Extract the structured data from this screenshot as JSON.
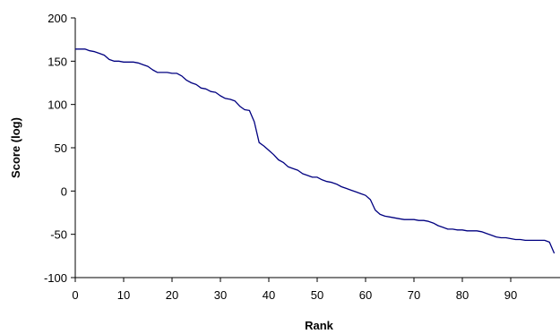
{
  "chart_data": {
    "type": "line",
    "title": "",
    "xlabel": "Rank",
    "ylabel": "Score (log)",
    "xlim": [
      0,
      100
    ],
    "ylim": [
      -100,
      200
    ],
    "x_ticks": [
      0,
      10,
      20,
      30,
      40,
      50,
      60,
      70,
      80,
      90
    ],
    "y_ticks": [
      -100,
      -50,
      0,
      50,
      100,
      150,
      200
    ],
    "x_tick_labels": [
      "0",
      "10",
      "20",
      "30",
      "40",
      "50",
      "60",
      "70",
      "80",
      "90"
    ],
    "y_tick_labels": [
      "-100",
      "-50",
      "0",
      "50",
      "100",
      "150",
      "200"
    ],
    "grid": false,
    "legend": "none",
    "line_color": "#000080",
    "series": [
      {
        "x": [
          0,
          1,
          2,
          3,
          4,
          5,
          6,
          7,
          8,
          9,
          10,
          11,
          12,
          13,
          14,
          15,
          16,
          17,
          18,
          19,
          20,
          21,
          22,
          23,
          24,
          25,
          26,
          27,
          28,
          29,
          30,
          31,
          32,
          33,
          34,
          35,
          36,
          37,
          38,
          39,
          40,
          41,
          42,
          43,
          44,
          45,
          46,
          47,
          48,
          49,
          50,
          51,
          52,
          53,
          54,
          55,
          56,
          57,
          58,
          59,
          60,
          61,
          62,
          63,
          64,
          65,
          66,
          67,
          68,
          69,
          70,
          71,
          72,
          73,
          74,
          75,
          76,
          77,
          78,
          79,
          80,
          81,
          82,
          83,
          84,
          85,
          86,
          87,
          88,
          89,
          90,
          91,
          92,
          93,
          94,
          95,
          96,
          97,
          98,
          99
        ],
        "values": [
          164,
          164,
          164,
          162,
          161,
          159,
          157,
          152,
          150,
          150,
          149,
          149,
          149,
          148,
          146,
          144,
          140,
          137,
          137,
          137,
          136,
          136,
          133,
          128,
          125,
          123,
          119,
          118,
          115,
          114,
          110,
          107,
          106,
          104,
          98,
          94,
          93,
          80,
          56,
          52,
          47,
          42,
          36,
          33,
          28,
          26,
          24,
          20,
          18,
          16,
          16,
          13,
          11,
          10,
          8,
          5,
          3,
          1,
          -1,
          -3,
          -5,
          -10,
          -22,
          -27,
          -29,
          -30,
          -31,
          -32,
          -33,
          -33,
          -33,
          -34,
          -34,
          -35,
          -37,
          -40,
          -42,
          -44,
          -44,
          -45,
          -45,
          -46,
          -46,
          -46,
          -47,
          -49,
          -51,
          -53,
          -54,
          -54,
          -55,
          -56,
          -56,
          -57,
          -57,
          -57,
          -57,
          -57,
          -59,
          -72
        ]
      }
    ]
  }
}
